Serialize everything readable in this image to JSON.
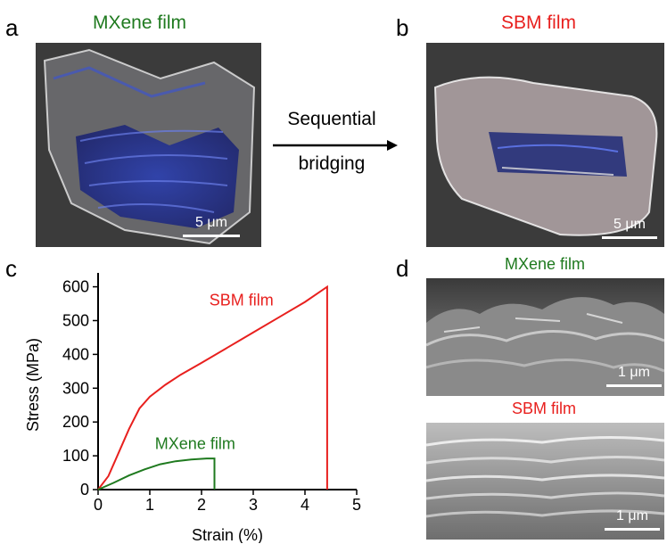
{
  "panels": {
    "a": {
      "letter": "a",
      "title": "MXene film",
      "scale_bar": "5 μm"
    },
    "b": {
      "letter": "b",
      "title": "SBM film",
      "scale_bar": "5 μm"
    },
    "arrow": {
      "line1": "Sequential",
      "line2": "bridging"
    },
    "c": {
      "letter": "c"
    },
    "d": {
      "letter": "d",
      "top_title": "MXene film",
      "top_scale_bar": "1 μm",
      "bottom_title": "SBM film",
      "bottom_scale_bar": "1 μm"
    }
  },
  "colors": {
    "mxene": "#1f7a1f",
    "sbm": "#e8201e",
    "dark_bg": "#3b3b3b"
  },
  "chart_data": {
    "type": "line",
    "xlabel": "Strain (%)",
    "ylabel": "Stress (MPa)",
    "xlim": [
      0,
      5
    ],
    "ylim": [
      0,
      620
    ],
    "xticks": [
      0,
      1,
      2,
      3,
      4,
      5
    ],
    "yticks": [
      0,
      100,
      200,
      300,
      400,
      500,
      600
    ],
    "grid": false,
    "series": [
      {
        "name": "SBM film",
        "color": "#e8201e",
        "x": [
          0,
          0.2,
          0.4,
          0.6,
          0.8,
          1.0,
          1.3,
          1.6,
          2.0,
          2.5,
          3.0,
          3.5,
          4.0,
          4.43,
          4.43
        ],
        "y": [
          0,
          40,
          110,
          180,
          240,
          275,
          310,
          340,
          375,
          420,
          465,
          510,
          555,
          600,
          0
        ]
      },
      {
        "name": "MXene film",
        "color": "#1f7a1f",
        "x": [
          0,
          0.3,
          0.6,
          0.9,
          1.2,
          1.5,
          1.8,
          2.1,
          2.25,
          2.25
        ],
        "y": [
          0,
          20,
          42,
          60,
          75,
          84,
          89,
          92,
          92,
          0
        ]
      }
    ]
  }
}
